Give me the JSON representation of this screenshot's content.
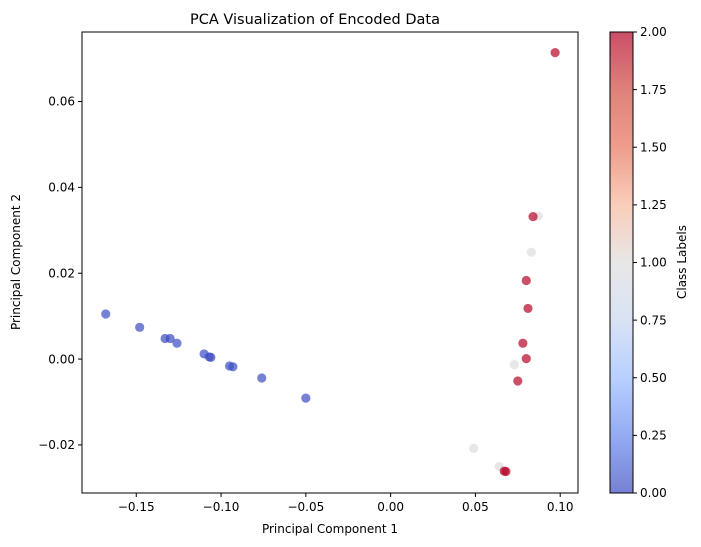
{
  "chart_data": {
    "type": "scatter",
    "title": "PCA Visualization of Encoded Data",
    "xlabel": "Principal Component 1",
    "ylabel": "Principal Component 2",
    "xlim": [
      -0.182,
      0.1105
    ],
    "ylim": [
      -0.0312,
      0.0762
    ],
    "xticks": [
      -0.15,
      -0.1,
      -0.05,
      0.0,
      0.05,
      0.1
    ],
    "xtick_labels": [
      "−0.15",
      "−0.10",
      "−0.05",
      "0.00",
      "0.05",
      "0.10"
    ],
    "yticks": [
      -0.02,
      0.0,
      0.02,
      0.04,
      0.06
    ],
    "ytick_labels": [
      "−0.02",
      "0.00",
      "0.02",
      "0.04",
      "0.06"
    ],
    "grid": false,
    "marker_alpha": 0.7,
    "colormap": "coolwarm",
    "colorbar": {
      "label": "Class Labels",
      "range": [
        0,
        2
      ],
      "ticks": [
        0.0,
        0.25,
        0.5,
        0.75,
        1.0,
        1.25,
        1.5,
        1.75,
        2.0
      ],
      "tick_labels": [
        "0.00",
        "0.25",
        "0.50",
        "0.75",
        "1.00",
        "1.25",
        "1.50",
        "1.75",
        "2.00"
      ],
      "colors": [
        "#3b4cc0",
        "#6788ee",
        "#9abbff",
        "#c9d7f0",
        "#dddddd",
        "#f7b89c",
        "#e7745b",
        "#d14b42",
        "#b40426"
      ]
    },
    "points": [
      {
        "x": -0.168,
        "y": 0.0105,
        "label": 0
      },
      {
        "x": -0.148,
        "y": 0.0074,
        "label": 0
      },
      {
        "x": -0.133,
        "y": 0.0048,
        "label": 0
      },
      {
        "x": -0.13,
        "y": 0.0048,
        "label": 0
      },
      {
        "x": -0.126,
        "y": 0.0037,
        "label": 0
      },
      {
        "x": -0.11,
        "y": 0.0012,
        "label": 0
      },
      {
        "x": -0.107,
        "y": 0.0005,
        "label": 0
      },
      {
        "x": -0.106,
        "y": 0.0004,
        "label": 0
      },
      {
        "x": -0.095,
        "y": -0.0016,
        "label": 0
      },
      {
        "x": -0.093,
        "y": -0.0018,
        "label": 0
      },
      {
        "x": -0.076,
        "y": -0.0044,
        "label": 0
      },
      {
        "x": -0.05,
        "y": -0.0091,
        "label": 0
      },
      {
        "x": 0.049,
        "y": -0.0208,
        "label": 1
      },
      {
        "x": 0.064,
        "y": -0.025,
        "label": 1
      },
      {
        "x": 0.073,
        "y": -0.0013,
        "label": 1
      },
      {
        "x": 0.083,
        "y": 0.0249,
        "label": 1
      },
      {
        "x": 0.087,
        "y": 0.0333,
        "label": 1
      },
      {
        "x": 0.067,
        "y": -0.0261,
        "label": 2
      },
      {
        "x": 0.068,
        "y": -0.0262,
        "label": 2
      },
      {
        "x": 0.075,
        "y": -0.0051,
        "label": 2
      },
      {
        "x": 0.078,
        "y": 0.0037,
        "label": 2
      },
      {
        "x": 0.08,
        "y": 0.0001,
        "label": 2
      },
      {
        "x": 0.08,
        "y": 0.0183,
        "label": 2
      },
      {
        "x": 0.081,
        "y": 0.0118,
        "label": 2
      },
      {
        "x": 0.084,
        "y": 0.0332,
        "label": 2
      },
      {
        "x": 0.097,
        "y": 0.0714,
        "label": 2
      }
    ]
  }
}
